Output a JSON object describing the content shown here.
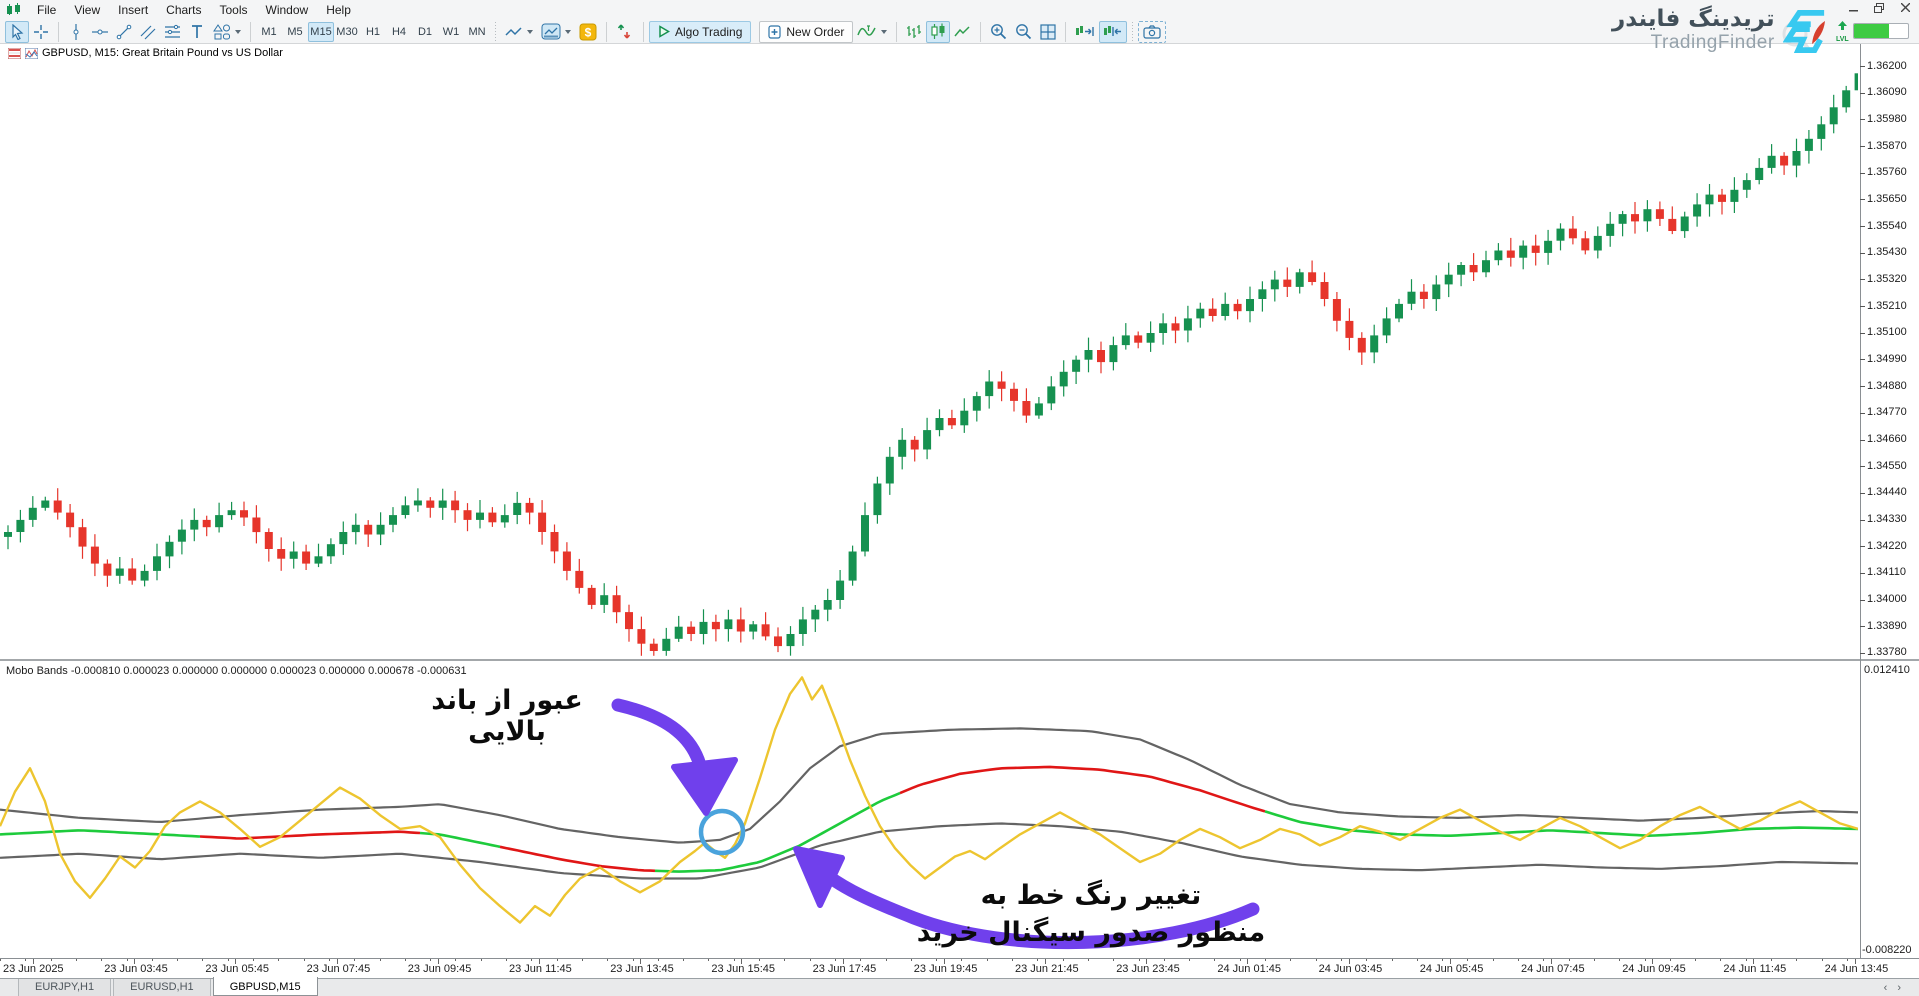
{
  "menu": {
    "items": [
      "File",
      "View",
      "Insert",
      "Charts",
      "Tools",
      "Window",
      "Help"
    ]
  },
  "toolbar": {
    "timeframes": {
      "items": [
        "M1",
        "M5",
        "M15",
        "M30",
        "H1",
        "H4",
        "D1",
        "W1",
        "MN"
      ],
      "selected": "M15"
    },
    "algo_trading_label": "Algo Trading",
    "new_order_label": "New Order"
  },
  "chart": {
    "title": "GBPUSD, M15: Great Britain Pound vs US Dollar",
    "price_labels": [
      "1.36200",
      "1.36090",
      "1.35980",
      "1.35870",
      "1.35760",
      "1.35650",
      "1.35540",
      "1.35430",
      "1.35320",
      "1.35210",
      "1.35100",
      "1.34990",
      "1.34880",
      "1.34770",
      "1.34660",
      "1.34550",
      "1.34440",
      "1.34330",
      "1.34220",
      "1.34110",
      "1.34000",
      "1.33890",
      "1.33780"
    ],
    "time_labels": [
      "23 Jun 2025",
      "23 Jun 03:45",
      "23 Jun 05:45",
      "23 Jun 07:45",
      "23 Jun 09:45",
      "23 Jun 11:45",
      "23 Jun 13:45",
      "23 Jun 15:45",
      "23 Jun 17:45",
      "23 Jun 19:45",
      "23 Jun 21:45",
      "23 Jun 23:45",
      "24 Jun 01:45",
      "24 Jun 03:45",
      "24 Jun 05:45",
      "24 Jun 07:45",
      "24 Jun 09:45",
      "24 Jun 11:45",
      "24 Jun 13:45"
    ]
  },
  "indicator": {
    "label": "Mobo Bands -0.000810 0.000023 0.000000 0.000000 0.000023 0.000000 0.000678 -0.000631",
    "max_label": "0.012410",
    "min_label": "-0.008220"
  },
  "annotations": {
    "upper_band_cross": "عبور از باند بالایی",
    "signal_line1": "تغییر رنگ خط به",
    "signal_line2": "منظور صدور سیگنال خرید"
  },
  "brand": {
    "fa": "تریدینگ فایندر",
    "en": "TradingFinder",
    "lvl": "LVL"
  },
  "tabs": {
    "items": [
      "EURJPY,H1",
      "EURUSD,H1",
      "GBPUSD,M15"
    ],
    "active": "GBPUSD,M15"
  },
  "colors": {
    "candle_up": "#169150",
    "candle_down": "#e6352b",
    "band_gray": "#646464",
    "mobo_yellow": "#edc52f",
    "mobo_green": "#1ecb3c",
    "mobo_red": "#e01616",
    "annotation_purple": "#7040ec",
    "circle_blue": "#4aa3dc",
    "brand_cyan": "#38c9f0"
  },
  "chart_data": {
    "type": "candlestick",
    "symbol": "GBPUSD",
    "timeframe": "M15",
    "price_axis": {
      "max": 1.362,
      "min": 1.3378,
      "tick": 0.0011
    },
    "first_open": 1.3426,
    "candles_close": [
      1.3428,
      1.3433,
      1.3438,
      1.3441,
      1.3436,
      1.343,
      1.3422,
      1.3415,
      1.341,
      1.3413,
      1.3408,
      1.3412,
      1.3418,
      1.3424,
      1.3429,
      1.3433,
      1.343,
      1.3435,
      1.3437,
      1.3434,
      1.3428,
      1.3421,
      1.3417,
      1.342,
      1.3415,
      1.3418,
      1.3423,
      1.3428,
      1.3431,
      1.3427,
      1.3431,
      1.3435,
      1.3439,
      1.3441,
      1.3438,
      1.3441,
      1.3437,
      1.3433,
      1.3436,
      1.3432,
      1.3435,
      1.344,
      1.3436,
      1.3428,
      1.342,
      1.3412,
      1.3405,
      1.3398,
      1.3402,
      1.3395,
      1.3388,
      1.3382,
      1.3379,
      1.3384,
      1.3389,
      1.3386,
      1.3391,
      1.3388,
      1.3392,
      1.3387,
      1.339,
      1.3385,
      1.3381,
      1.3386,
      1.3392,
      1.3396,
      1.34,
      1.3408,
      1.342,
      1.3435,
      1.3448,
      1.3459,
      1.3466,
      1.3462,
      1.347,
      1.3475,
      1.3472,
      1.3478,
      1.3484,
      1.349,
      1.3487,
      1.3482,
      1.3476,
      1.3481,
      1.3488,
      1.3494,
      1.3499,
      1.3503,
      1.3498,
      1.3505,
      1.3509,
      1.3506,
      1.351,
      1.3514,
      1.3511,
      1.3516,
      1.352,
      1.3517,
      1.3522,
      1.3519,
      1.3524,
      1.3528,
      1.3532,
      1.3529,
      1.3535,
      1.3531,
      1.3524,
      1.3515,
      1.3508,
      1.3502,
      1.3509,
      1.3516,
      1.3522,
      1.3527,
      1.3524,
      1.353,
      1.3534,
      1.3538,
      1.3535,
      1.354,
      1.3544,
      1.3541,
      1.3546,
      1.3543,
      1.3548,
      1.3553,
      1.3549,
      1.3544,
      1.355,
      1.3555,
      1.3559,
      1.3556,
      1.3561,
      1.3557,
      1.3552,
      1.3558,
      1.3563,
      1.3567,
      1.3564,
      1.3569,
      1.3573,
      1.3578,
      1.3583,
      1.3579,
      1.3585,
      1.359,
      1.3596,
      1.3603,
      1.361,
      1.3617
    ],
    "indicator": {
      "name": "Mobo Bands",
      "scale": {
        "max": 0.01241,
        "min": -0.00822
      },
      "upper": [
        [
          0,
          0.0022
        ],
        [
          80,
          0.0016
        ],
        [
          160,
          0.0013
        ],
        [
          240,
          0.0018
        ],
        [
          320,
          0.0022
        ],
        [
          400,
          0.0024
        ],
        [
          440,
          0.0026
        ],
        [
          500,
          0.0018
        ],
        [
          560,
          0.0008
        ],
        [
          620,
          0.0002
        ],
        [
          680,
          -0.0002
        ],
        [
          720,
          0.0
        ],
        [
          750,
          0.0008
        ],
        [
          780,
          0.0028
        ],
        [
          810,
          0.0052
        ],
        [
          840,
          0.0068
        ],
        [
          880,
          0.0077
        ],
        [
          950,
          0.008
        ],
        [
          1020,
          0.0081
        ],
        [
          1090,
          0.0079
        ],
        [
          1140,
          0.0073
        ],
        [
          1190,
          0.0058
        ],
        [
          1240,
          0.004
        ],
        [
          1290,
          0.0026
        ],
        [
          1340,
          0.002
        ],
        [
          1400,
          0.0017
        ],
        [
          1460,
          0.0016
        ],
        [
          1520,
          0.0018
        ],
        [
          1580,
          0.0016
        ],
        [
          1640,
          0.0014
        ],
        [
          1700,
          0.0016
        ],
        [
          1760,
          0.0019
        ],
        [
          1820,
          0.0021
        ],
        [
          1858,
          0.002
        ]
      ],
      "lower": [
        [
          0,
          -0.0013
        ],
        [
          80,
          -0.001
        ],
        [
          160,
          -0.0014
        ],
        [
          240,
          -0.001
        ],
        [
          320,
          -0.0013
        ],
        [
          400,
          -0.001
        ],
        [
          480,
          -0.0016
        ],
        [
          560,
          -0.0024
        ],
        [
          640,
          -0.0028
        ],
        [
          700,
          -0.0028
        ],
        [
          760,
          -0.002
        ],
        [
          820,
          -0.0004
        ],
        [
          880,
          0.0006
        ],
        [
          940,
          0.001
        ],
        [
          1000,
          0.0012
        ],
        [
          1060,
          0.001
        ],
        [
          1120,
          0.0006
        ],
        [
          1180,
          -0.0002
        ],
        [
          1240,
          -0.0012
        ],
        [
          1300,
          -0.0018
        ],
        [
          1360,
          -0.0021
        ],
        [
          1420,
          -0.0022
        ],
        [
          1480,
          -0.002
        ],
        [
          1540,
          -0.0018
        ],
        [
          1600,
          -0.002
        ],
        [
          1660,
          -0.0021
        ],
        [
          1720,
          -0.0019
        ],
        [
          1780,
          -0.0016
        ],
        [
          1858,
          -0.0017
        ]
      ],
      "mid": [
        [
          0,
          0.0004
        ],
        [
          80,
          0.0007
        ],
        [
          160,
          0.0004
        ],
        [
          240,
          0.0001
        ],
        [
          320,
          0.0004
        ],
        [
          400,
          0.0006
        ],
        [
          440,
          0.0004
        ],
        [
          480,
          -0.0002
        ],
        [
          520,
          -0.0008
        ],
        [
          560,
          -0.0014
        ],
        [
          600,
          -0.0019
        ],
        [
          640,
          -0.0022
        ],
        [
          680,
          -0.0023
        ],
        [
          720,
          -0.0022
        ],
        [
          760,
          -0.0016
        ],
        [
          800,
          -0.0004
        ],
        [
          840,
          0.0012
        ],
        [
          880,
          0.0028
        ],
        [
          920,
          0.004
        ],
        [
          960,
          0.0048
        ],
        [
          1000,
          0.0052
        ],
        [
          1050,
          0.0053
        ],
        [
          1100,
          0.0051
        ],
        [
          1150,
          0.0046
        ],
        [
          1200,
          0.0036
        ],
        [
          1250,
          0.0024
        ],
        [
          1300,
          0.0013
        ],
        [
          1350,
          0.0007
        ],
        [
          1400,
          0.0004
        ],
        [
          1450,
          0.0003
        ],
        [
          1500,
          0.0005
        ],
        [
          1550,
          0.0007
        ],
        [
          1600,
          0.0005
        ],
        [
          1650,
          0.0003
        ],
        [
          1700,
          0.0005
        ],
        [
          1750,
          0.0008
        ],
        [
          1800,
          0.0009
        ],
        [
          1858,
          0.0008
        ]
      ],
      "mid_segments": [
        [
          0,
          200,
          "g"
        ],
        [
          200,
          420,
          "r"
        ],
        [
          420,
          500,
          "g"
        ],
        [
          500,
          655,
          "r"
        ],
        [
          655,
          900,
          "g"
        ],
        [
          900,
          1265,
          "r"
        ],
        [
          1265,
          1858,
          "g"
        ]
      ],
      "signal": [
        [
          0,
          0.001
        ],
        [
          15,
          0.0035
        ],
        [
          30,
          0.0052
        ],
        [
          45,
          0.0028
        ],
        [
          60,
          -0.001
        ],
        [
          75,
          -0.003
        ],
        [
          90,
          -0.0042
        ],
        [
          105,
          -0.0028
        ],
        [
          120,
          -0.0012
        ],
        [
          135,
          -0.002
        ],
        [
          150,
          -0.0008
        ],
        [
          165,
          0.001
        ],
        [
          180,
          0.002
        ],
        [
          200,
          0.0028
        ],
        [
          220,
          0.002
        ],
        [
          240,
          0.0008
        ],
        [
          260,
          -0.0005
        ],
        [
          280,
          0.0002
        ],
        [
          300,
          0.0014
        ],
        [
          320,
          0.0026
        ],
        [
          340,
          0.0038
        ],
        [
          360,
          0.003
        ],
        [
          380,
          0.0018
        ],
        [
          400,
          0.0008
        ],
        [
          420,
          0.001
        ],
        [
          440,
          0.0002
        ],
        [
          460,
          -0.0018
        ],
        [
          480,
          -0.0035
        ],
        [
          500,
          -0.0048
        ],
        [
          520,
          -0.006
        ],
        [
          535,
          -0.0048
        ],
        [
          550,
          -0.0055
        ],
        [
          565,
          -0.004
        ],
        [
          580,
          -0.0028
        ],
        [
          600,
          -0.002
        ],
        [
          620,
          -0.003
        ],
        [
          640,
          -0.0038
        ],
        [
          660,
          -0.003
        ],
        [
          680,
          -0.0016
        ],
        [
          695,
          -0.0008
        ],
        [
          705,
          -0.0002
        ],
        [
          715,
          -0.0008
        ],
        [
          725,
          -0.0013
        ],
        [
          735,
          -0.0003
        ],
        [
          745,
          0.0012
        ],
        [
          760,
          0.0045
        ],
        [
          775,
          0.008
        ],
        [
          790,
          0.0106
        ],
        [
          802,
          0.0118
        ],
        [
          812,
          0.0102
        ],
        [
          822,
          0.0112
        ],
        [
          835,
          0.0088
        ],
        [
          850,
          0.0058
        ],
        [
          865,
          0.0032
        ],
        [
          880,
          0.001
        ],
        [
          895,
          -0.0006
        ],
        [
          910,
          -0.0018
        ],
        [
          925,
          -0.0028
        ],
        [
          940,
          -0.002
        ],
        [
          955,
          -0.0012
        ],
        [
          970,
          -0.0008
        ],
        [
          985,
          -0.0014
        ],
        [
          1000,
          -0.0006
        ],
        [
          1020,
          0.0004
        ],
        [
          1040,
          0.0012
        ],
        [
          1060,
          0.002
        ],
        [
          1080,
          0.0012
        ],
        [
          1100,
          0.0004
        ],
        [
          1120,
          -0.0006
        ],
        [
          1140,
          -0.0016
        ],
        [
          1160,
          -0.001
        ],
        [
          1180,
          0.0
        ],
        [
          1200,
          0.0008
        ],
        [
          1220,
          0.0002
        ],
        [
          1240,
          -0.0006
        ],
        [
          1260,
          0.0
        ],
        [
          1280,
          0.0008
        ],
        [
          1300,
          0.0004
        ],
        [
          1320,
          -0.0004
        ],
        [
          1340,
          0.0002
        ],
        [
          1360,
          0.001
        ],
        [
          1380,
          0.0006
        ],
        [
          1400,
          0.0
        ],
        [
          1420,
          0.0008
        ],
        [
          1440,
          0.0016
        ],
        [
          1460,
          0.0022
        ],
        [
          1480,
          0.0014
        ],
        [
          1500,
          0.0006
        ],
        [
          1520,
          0.0
        ],
        [
          1540,
          0.0008
        ],
        [
          1560,
          0.0016
        ],
        [
          1580,
          0.001
        ],
        [
          1600,
          0.0002
        ],
        [
          1620,
          -0.0006
        ],
        [
          1640,
          0.0
        ],
        [
          1660,
          0.001
        ],
        [
          1680,
          0.0018
        ],
        [
          1700,
          0.0024
        ],
        [
          1720,
          0.0016
        ],
        [
          1740,
          0.0008
        ],
        [
          1760,
          0.0014
        ],
        [
          1780,
          0.0022
        ],
        [
          1800,
          0.0028
        ],
        [
          1820,
          0.002
        ],
        [
          1840,
          0.0012
        ],
        [
          1858,
          0.0008
        ]
      ]
    }
  }
}
